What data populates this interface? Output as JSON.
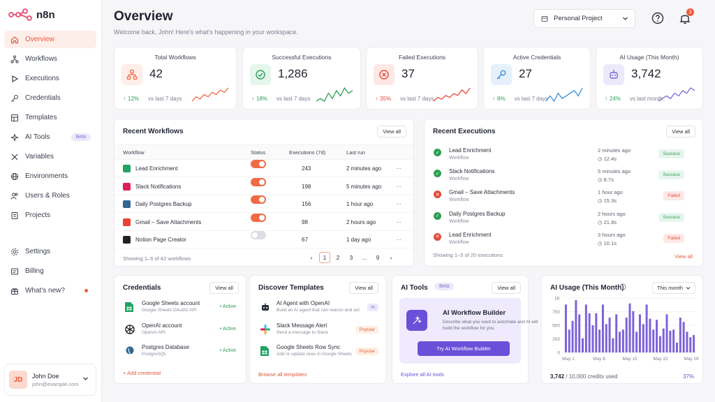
{
  "app": {
    "name": "n8n"
  },
  "sidebar": {
    "items": [
      {
        "label": "Overview",
        "icon": "home-icon",
        "active": true
      },
      {
        "label": "Workflows",
        "icon": "workflow-icon"
      },
      {
        "label": "Executions",
        "icon": "play-icon"
      },
      {
        "label": "Credentials",
        "icon": "key-icon"
      },
      {
        "label": "Templates",
        "icon": "template-icon"
      },
      {
        "label": "AI Tools",
        "icon": "sparkle-icon",
        "badge": "Beta"
      },
      {
        "label": "Variables",
        "icon": "variable-icon"
      },
      {
        "label": "Environments",
        "icon": "globe-icon"
      },
      {
        "label": "Users & Roles",
        "icon": "users-icon"
      },
      {
        "label": "Projects",
        "icon": "projects-icon"
      }
    ],
    "bottom_items": [
      {
        "label": "Settings",
        "icon": "gear-icon"
      },
      {
        "label": "Billing",
        "icon": "billing-icon"
      },
      {
        "label": "What's new?",
        "icon": "gift-icon",
        "dot": true
      }
    ],
    "user": {
      "initials": "JD",
      "name": "John Doe",
      "email": "john@example.com"
    }
  },
  "header": {
    "title": "Overview",
    "subtitle": "Welcome back, John! Here's what's happening in your workspace.",
    "project": "Personal Project",
    "notification_count": "3"
  },
  "stats": [
    {
      "label": "Total Workflows",
      "value": "42",
      "delta": "12%",
      "trend": "up",
      "vs": "vs last 7 days",
      "color": "#f16a45",
      "icon": "workflow-icon",
      "spark": [
        3,
        5,
        4,
        6,
        5,
        7,
        6,
        8,
        7,
        9
      ]
    },
    {
      "label": "Successful Executions",
      "value": "1,286",
      "delta": "18%",
      "trend": "up",
      "vs": "vs last 7 days",
      "color": "#2f9e55",
      "icon": "check-circle-icon",
      "spark": [
        3,
        4,
        3,
        6,
        4,
        7,
        5,
        8,
        6,
        7
      ]
    },
    {
      "label": "Failed Executions",
      "value": "37",
      "delta": "35%",
      "trend": "up",
      "vs": "vs last 7 days",
      "color": "#e24b3b",
      "icon": "x-circle-icon",
      "spark": [
        2,
        4,
        3,
        5,
        4,
        6,
        5,
        8,
        6,
        9
      ]
    },
    {
      "label": "Active Credentials",
      "value": "27",
      "delta": "8%",
      "trend": "up",
      "vs": "vs last 7 days",
      "color": "#3b8fd9",
      "icon": "key-icon",
      "spark": [
        3,
        5,
        3,
        6,
        4,
        5,
        6,
        7,
        5,
        8
      ]
    },
    {
      "label": "AI Usage (This Month)",
      "value": "3,742",
      "delta": "24%",
      "trend": "up",
      "vs": "vs last month",
      "color": "#7c6bd6",
      "icon": "robot-icon",
      "spark": [
        3,
        4,
        5,
        4,
        6,
        5,
        7,
        6,
        8,
        7
      ]
    }
  ],
  "recent_workflows": {
    "title": "Recent Workflows",
    "view_all": "View all",
    "columns": [
      "Workflow",
      "Status",
      "Executions (7d)",
      "Last run"
    ],
    "rows": [
      {
        "name": "Lead Enrichment",
        "active": true,
        "executions": "243",
        "last_run": "2 minutes ago",
        "icon": "google-sheets-icon",
        "color": "#1fa463"
      },
      {
        "name": "Slack Notifications",
        "active": true,
        "executions": "198",
        "last_run": "5 minutes ago",
        "icon": "slack-icon",
        "color": "#e01e5a"
      },
      {
        "name": "Daily Postgres Backup",
        "active": true,
        "executions": "156",
        "last_run": "1 hour ago",
        "icon": "postgres-icon",
        "color": "#336791"
      },
      {
        "name": "Gmail – Save Attachments",
        "active": true,
        "executions": "98",
        "last_run": "2 hours ago",
        "icon": "gmail-icon",
        "color": "#ea4335"
      },
      {
        "name": "Notion Page Creator",
        "active": false,
        "executions": "67",
        "last_run": "1 day ago",
        "icon": "notion-icon",
        "color": "#222222"
      }
    ],
    "footer": "Showing 1–5 of 42 workflows",
    "pages": [
      "1",
      "2",
      "3",
      "...",
      "9"
    ]
  },
  "recent_executions": {
    "title": "Recent Executions",
    "view_all": "View all",
    "rows": [
      {
        "name": "Lead Enrichment",
        "sub": "Workflow",
        "time": "2 minutes ago",
        "duration": "12.4s",
        "status": "Success"
      },
      {
        "name": "Slack Notifications",
        "sub": "Workflow",
        "time": "5 minutes ago",
        "duration": "8.7s",
        "status": "Success"
      },
      {
        "name": "Gmail – Save Attachments",
        "sub": "Workflow",
        "time": "1 hour ago",
        "duration": "15.3s",
        "status": "Failed"
      },
      {
        "name": "Daily Postgres Backup",
        "sub": "Workflow",
        "time": "2 hours ago",
        "duration": "21.8s",
        "status": "Success"
      },
      {
        "name": "Lead Enrichment",
        "sub": "Workflow",
        "time": "3 hours ago",
        "duration": "10.1s",
        "status": "Failed"
      }
    ],
    "footer": "Showing 1–5 of 20 executions",
    "link": "View all"
  },
  "credentials": {
    "title": "Credentials",
    "view_all": "View all",
    "rows": [
      {
        "name": "Google Sheets account",
        "sub": "Google Sheets OAuth2 API",
        "status": "Active",
        "icon": "google-sheets-icon"
      },
      {
        "name": "OpenAI account",
        "sub": "OpenAI API",
        "status": "Active",
        "icon": "openai-icon"
      },
      {
        "name": "Postgres Database",
        "sub": "PostgreSQL",
        "status": "Active",
        "icon": "postgres-icon"
      }
    ],
    "add": "+ Add credential"
  },
  "templates": {
    "title": "Discover Templates",
    "view_all": "View all",
    "rows": [
      {
        "name": "AI Agent with OpenAI",
        "sub": "Build an AI agent that can reason and act",
        "tag": "AI",
        "icon": "robot-icon"
      },
      {
        "name": "Slack Message Alert",
        "sub": "Send a message to Slack",
        "tag": "Popular",
        "icon": "slack-icon"
      },
      {
        "name": "Google Sheets Row Sync",
        "sub": "Add or update rows in Google Sheets",
        "tag": "Popular",
        "icon": "google-sheets-icon"
      }
    ],
    "link": "Browse all templates"
  },
  "ai_tools": {
    "title": "AI Tools",
    "badge": "Beta",
    "view_all": "View all",
    "builder_title": "AI Workflow Builder",
    "builder_desc": "Describe what you want to automate and AI will build the workflow for you.",
    "button": "Try AI Workflow Builder",
    "link": "Explore all AI tools"
  },
  "ai_usage": {
    "title": "AI Usage (This Month)",
    "period": "This month",
    "used": "3,742",
    "total_text": "/ 10,000 credits used",
    "percent": "37%",
    "bar_color": "#7d62d9",
    "chart_data": {
      "type": "bar",
      "x_ticks": [
        "May 1",
        "May 8",
        "May 15",
        "May 22",
        "May 29"
      ],
      "y_ticks": [
        "1K",
        "750",
        "500",
        "250",
        "0"
      ],
      "ylim": [
        0,
        1000
      ],
      "values": [
        880,
        420,
        580,
        960,
        700,
        260,
        880,
        720,
        500,
        720,
        420,
        880,
        520,
        640,
        260,
        700,
        380,
        420,
        640,
        900,
        760,
        380,
        700,
        520,
        880,
        620,
        420,
        600,
        300,
        440,
        700,
        400,
        420,
        180,
        640,
        560,
        380,
        280,
        320
      ]
    }
  }
}
